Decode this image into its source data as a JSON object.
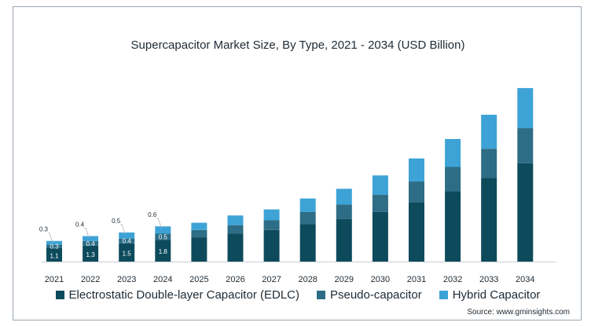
{
  "chart_data": {
    "type": "bar",
    "stacked": true,
    "title": "Supercapacitor Market Size, By Type, 2021 - 2034 (USD Billion)",
    "xlabel": "",
    "ylabel": "",
    "categories": [
      "2021",
      "2022",
      "2023",
      "2024",
      "2025",
      "2026",
      "2027",
      "2028",
      "2029",
      "2030",
      "2031",
      "2032",
      "2033",
      "2034"
    ],
    "series": [
      {
        "name": "Electrostatic Double-layer Capacitor (EDLC)",
        "color": "#0d4b5c",
        "values": [
          1.1,
          1.3,
          1.5,
          1.8,
          2.0,
          2.3,
          2.6,
          3.1,
          3.5,
          4.1,
          4.9,
          5.8,
          6.9,
          8.1
        ]
      },
      {
        "name": "Pseudo-capacitor",
        "color": "#2d6d85",
        "values": [
          0.3,
          0.4,
          0.4,
          0.5,
          0.6,
          0.7,
          0.8,
          1.0,
          1.2,
          1.4,
          1.7,
          2.0,
          2.4,
          2.9
        ]
      },
      {
        "name": "Hybrid Capacitor",
        "color": "#3da3d6",
        "values": [
          0.3,
          0.4,
          0.5,
          0.6,
          0.6,
          0.8,
          0.9,
          1.1,
          1.3,
          1.6,
          1.9,
          2.3,
          2.8,
          3.3
        ]
      }
    ],
    "data_labels": {
      "2021": [
        "1.1",
        "0.3",
        "0.3"
      ],
      "2022": [
        "1.3",
        "0.4",
        "0.4"
      ],
      "2023": [
        "1.5",
        "0.4",
        "0.5"
      ],
      "2024": [
        "1.8",
        "0.5",
        "0.6"
      ]
    },
    "ylim": [
      0,
      14.5
    ],
    "grid": false,
    "legend_position": "bottom"
  },
  "source": "Source: www.gminsights.com"
}
